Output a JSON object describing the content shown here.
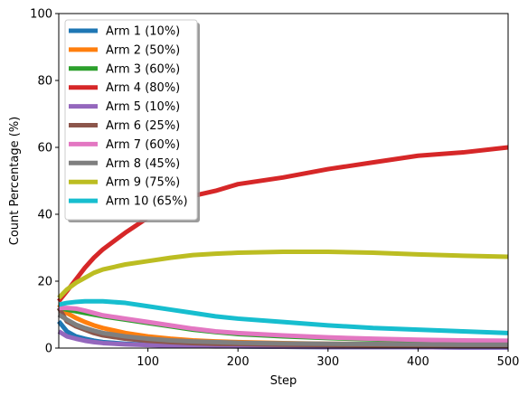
{
  "chart_data": {
    "type": "line",
    "title": "",
    "xlabel": "Step",
    "ylabel": "Count Percentage (%)",
    "xlim": [
      1,
      500
    ],
    "ylim": [
      0,
      100
    ],
    "xticks": [
      100,
      200,
      300,
      400,
      500
    ],
    "yticks": [
      0,
      20,
      40,
      60,
      80,
      100
    ],
    "grid": false,
    "legend_position": "top-left",
    "x": [
      1,
      10,
      20,
      30,
      40,
      50,
      75,
      100,
      125,
      150,
      175,
      200,
      250,
      300,
      350,
      400,
      450,
      500
    ],
    "series": [
      {
        "name": "Arm 1 (10%)",
        "color": "#1f77b4",
        "values": [
          8.0,
          5.0,
          3.5,
          2.8,
          2.2,
          1.8,
          1.3,
          1.0,
          0.8,
          0.7,
          0.6,
          0.5,
          0.4,
          0.3,
          0.3,
          0.3,
          0.2,
          0.2
        ]
      },
      {
        "name": "Arm 2 (50%)",
        "color": "#ff7f0e",
        "values": [
          13.0,
          10.5,
          9.0,
          7.8,
          6.8,
          6.0,
          4.5,
          3.5,
          2.8,
          2.3,
          2.0,
          1.8,
          1.5,
          1.3,
          1.2,
          1.1,
          1.0,
          0.9
        ]
      },
      {
        "name": "Arm 3 (60%)",
        "color": "#2ca02c",
        "values": [
          12.0,
          11.5,
          11.0,
          10.5,
          10.0,
          9.5,
          8.5,
          7.5,
          6.5,
          5.5,
          4.8,
          4.2,
          3.5,
          3.0,
          2.6,
          2.3,
          2.1,
          2.0
        ]
      },
      {
        "name": "Arm 4 (80%)",
        "color": "#d62728",
        "values": [
          14.0,
          17.0,
          20.5,
          24.0,
          27.0,
          29.5,
          34.5,
          39.0,
          42.5,
          45.5,
          47.0,
          49.0,
          51.0,
          53.5,
          55.5,
          57.5,
          58.5,
          60.0
        ]
      },
      {
        "name": "Arm 5 (10%)",
        "color": "#9467bd",
        "values": [
          5.0,
          3.5,
          2.8,
          2.2,
          1.8,
          1.5,
          1.1,
          0.9,
          0.7,
          0.6,
          0.5,
          0.5,
          0.4,
          0.3,
          0.3,
          0.3,
          0.2,
          0.2
        ]
      },
      {
        "name": "Arm 6 (25%)",
        "color": "#8c564b",
        "values": [
          12.0,
          8.0,
          6.5,
          5.5,
          4.5,
          3.8,
          2.8,
          2.2,
          1.8,
          1.5,
          1.3,
          1.2,
          1.0,
          0.9,
          0.8,
          0.7,
          0.7,
          0.6
        ]
      },
      {
        "name": "Arm 7 (60%)",
        "color": "#e377c2",
        "values": [
          12.0,
          12.0,
          11.8,
          11.2,
          10.5,
          9.8,
          8.8,
          7.8,
          6.8,
          5.8,
          5.0,
          4.5,
          3.8,
          3.2,
          2.8,
          2.5,
          2.3,
          2.2
        ]
      },
      {
        "name": "Arm 8 (45%)",
        "color": "#7f7f7f",
        "values": [
          10.0,
          8.5,
          7.0,
          6.0,
          5.2,
          4.5,
          3.5,
          2.8,
          2.3,
          2.0,
          1.8,
          1.6,
          1.4,
          1.3,
          1.2,
          1.1,
          1.0,
          1.0
        ]
      },
      {
        "name": "Arm 9 (75%)",
        "color": "#bcbd22",
        "values": [
          15.0,
          17.5,
          19.5,
          21.0,
          22.5,
          23.5,
          25.0,
          26.0,
          27.0,
          27.8,
          28.2,
          28.5,
          28.8,
          28.8,
          28.5,
          28.0,
          27.6,
          27.3
        ]
      },
      {
        "name": "Arm 10 (65%)",
        "color": "#17becf",
        "values": [
          13.0,
          13.5,
          13.8,
          14.0,
          14.0,
          14.0,
          13.5,
          12.5,
          11.5,
          10.5,
          9.5,
          8.8,
          7.8,
          6.8,
          6.0,
          5.5,
          5.0,
          4.5
        ]
      }
    ]
  }
}
